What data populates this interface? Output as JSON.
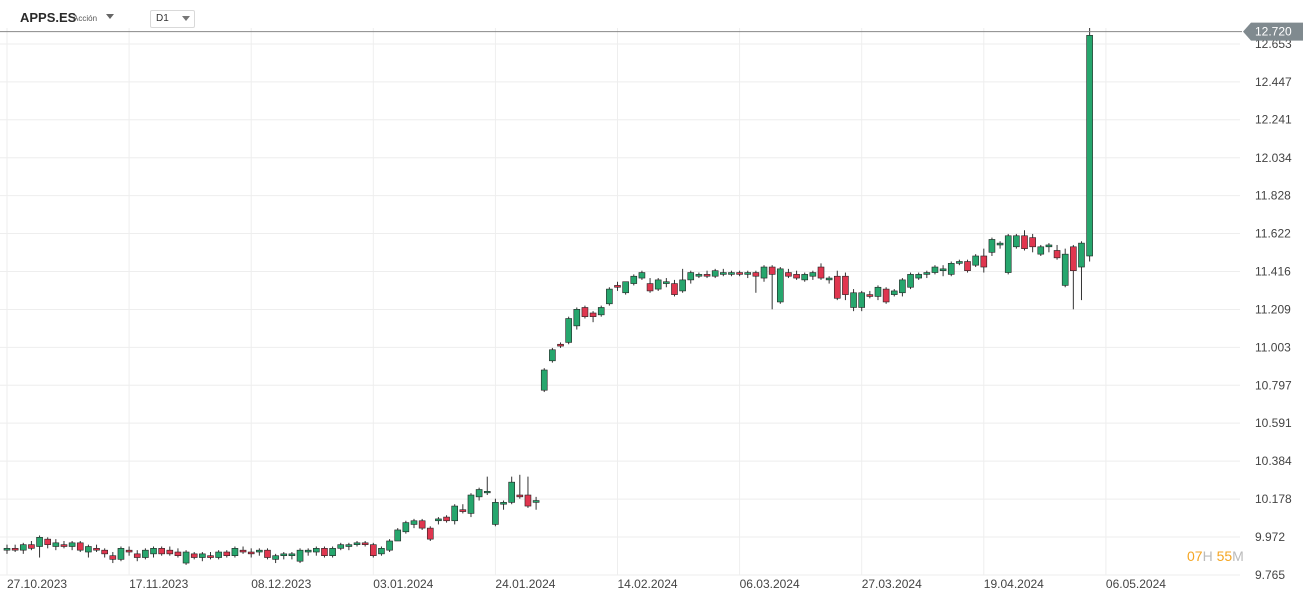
{
  "header": {
    "symbol": "APPS.ES",
    "type": "Acción",
    "timeframe": "D1"
  },
  "countdown": {
    "h": "07",
    "h_unit": "H",
    "m": "55",
    "m_unit": "M"
  },
  "colors": {
    "up": "#26a66d",
    "down": "#e0364f",
    "grid": "#eeeeee",
    "price_line": "#888888",
    "price_badge": "#808a8f"
  },
  "chart_data": {
    "type": "candlestick",
    "ylim": [
      9.765,
      12.74
    ],
    "y_ticks": [
      "12.653",
      "12.447",
      "12.241",
      "12.034",
      "11.828",
      "11.622",
      "11.416",
      "11.209",
      "11.003",
      "10.797",
      "10.591",
      "10.384",
      "10.178",
      "9.972",
      "9.765"
    ],
    "x_ticks": [
      "27.10.2023",
      "17.11.2023",
      "08.12.2023",
      "03.01.2024",
      "24.01.2024",
      "14.02.2024",
      "06.03.2024",
      "27.03.2024",
      "19.04.2024",
      "06.05.2024"
    ],
    "current_price": "12.720",
    "candles": [
      [
        9.9,
        9.93,
        9.88,
        9.91
      ],
      [
        9.91,
        9.93,
        9.89,
        9.9
      ],
      [
        9.9,
        9.94,
        9.88,
        9.93
      ],
      [
        9.93,
        9.95,
        9.9,
        9.91
      ],
      [
        9.92,
        9.98,
        9.86,
        9.97
      ],
      [
        9.96,
        9.97,
        9.91,
        9.93
      ],
      [
        9.92,
        9.96,
        9.9,
        9.94
      ],
      [
        9.93,
        9.95,
        9.91,
        9.92
      ],
      [
        9.92,
        9.95,
        9.9,
        9.94
      ],
      [
        9.94,
        9.95,
        9.89,
        9.9
      ],
      [
        9.89,
        9.93,
        9.86,
        9.92
      ],
      [
        9.91,
        9.93,
        9.89,
        9.9
      ],
      [
        9.9,
        9.91,
        9.86,
        9.88
      ],
      [
        9.87,
        9.89,
        9.83,
        9.85
      ],
      [
        9.85,
        9.92,
        9.84,
        9.91
      ],
      [
        9.9,
        9.92,
        9.87,
        9.89
      ],
      [
        9.88,
        9.9,
        9.84,
        9.86
      ],
      [
        9.86,
        9.91,
        9.85,
        9.9
      ],
      [
        9.88,
        9.92,
        9.86,
        9.91
      ],
      [
        9.91,
        9.92,
        9.87,
        9.88
      ],
      [
        9.9,
        9.92,
        9.87,
        9.88
      ],
      [
        9.89,
        9.91,
        9.86,
        9.87
      ],
      [
        9.83,
        9.9,
        9.82,
        9.89
      ],
      [
        9.88,
        9.89,
        9.85,
        9.86
      ],
      [
        9.86,
        9.89,
        9.84,
        9.88
      ],
      [
        9.87,
        9.89,
        9.85,
        9.86
      ],
      [
        9.86,
        9.9,
        9.85,
        9.89
      ],
      [
        9.89,
        9.9,
        9.86,
        9.87
      ],
      [
        9.87,
        9.92,
        9.86,
        9.91
      ],
      [
        9.9,
        9.92,
        9.88,
        9.89
      ],
      [
        9.89,
        9.91,
        9.86,
        9.88
      ],
      [
        9.89,
        9.91,
        9.87,
        9.9
      ],
      [
        9.9,
        9.91,
        9.85,
        9.86
      ],
      [
        9.85,
        9.88,
        9.83,
        9.87
      ],
      [
        9.87,
        9.89,
        9.85,
        9.88
      ],
      [
        9.87,
        9.89,
        9.85,
        9.88
      ],
      [
        9.84,
        9.91,
        9.83,
        9.9
      ],
      [
        9.89,
        9.91,
        9.87,
        9.9
      ],
      [
        9.89,
        9.92,
        9.87,
        9.91
      ],
      [
        9.91,
        9.92,
        9.86,
        9.87
      ],
      [
        9.87,
        9.92,
        9.86,
        9.91
      ],
      [
        9.91,
        9.94,
        9.9,
        9.93
      ],
      [
        9.92,
        9.94,
        9.9,
        9.93
      ],
      [
        9.93,
        9.95,
        9.92,
        9.94
      ],
      [
        9.94,
        9.95,
        9.92,
        9.93
      ],
      [
        9.93,
        9.94,
        9.86,
        9.87
      ],
      [
        9.88,
        9.92,
        9.87,
        9.91
      ],
      [
        9.9,
        9.96,
        9.89,
        9.95
      ],
      [
        9.95,
        10.02,
        9.95,
        10.01
      ],
      [
        10.0,
        10.06,
        9.99,
        10.05
      ],
      [
        10.04,
        10.07,
        10.02,
        10.06
      ],
      [
        10.06,
        10.07,
        10.01,
        10.02
      ],
      [
        10.02,
        10.03,
        9.95,
        9.96
      ],
      [
        10.06,
        10.08,
        10.04,
        10.07
      ],
      [
        10.08,
        10.09,
        10.05,
        10.06
      ],
      [
        10.06,
        10.15,
        10.04,
        10.14
      ],
      [
        10.12,
        10.15,
        10.1,
        10.11
      ],
      [
        10.1,
        10.21,
        10.08,
        10.2
      ],
      [
        10.19,
        10.24,
        10.17,
        10.23
      ],
      [
        10.22,
        10.3,
        10.2,
        10.22
      ],
      [
        10.04,
        10.18,
        10.03,
        10.16
      ],
      [
        10.15,
        10.17,
        10.12,
        10.16
      ],
      [
        10.16,
        10.3,
        10.15,
        10.27
      ],
      [
        10.2,
        10.31,
        10.18,
        10.19
      ],
      [
        10.2,
        10.3,
        10.13,
        10.14
      ],
      [
        10.16,
        10.19,
        10.12,
        10.17
      ],
      [
        10.77,
        10.89,
        10.76,
        10.88
      ],
      [
        10.93,
        11.0,
        10.92,
        10.99
      ],
      [
        11.02,
        11.03,
        11.0,
        11.01
      ],
      [
        11.03,
        11.17,
        11.02,
        11.16
      ],
      [
        11.12,
        11.22,
        11.1,
        11.21
      ],
      [
        11.22,
        11.23,
        11.16,
        11.17
      ],
      [
        11.19,
        11.2,
        11.14,
        11.17
      ],
      [
        11.18,
        11.23,
        11.17,
        11.22
      ],
      [
        11.24,
        11.33,
        11.23,
        11.32
      ],
      [
        11.34,
        11.36,
        11.31,
        11.33
      ],
      [
        11.3,
        11.36,
        11.29,
        11.36
      ],
      [
        11.35,
        11.4,
        11.34,
        11.39
      ],
      [
        11.38,
        11.42,
        11.37,
        11.41
      ],
      [
        11.35,
        11.38,
        11.3,
        11.31
      ],
      [
        11.32,
        11.38,
        11.31,
        11.37
      ],
      [
        11.35,
        11.38,
        11.33,
        11.36
      ],
      [
        11.35,
        11.37,
        11.28,
        11.29
      ],
      [
        11.31,
        11.43,
        11.3,
        11.37
      ],
      [
        11.37,
        11.42,
        11.35,
        11.41
      ],
      [
        11.39,
        11.41,
        11.38,
        11.4
      ],
      [
        11.4,
        11.42,
        11.38,
        11.39
      ],
      [
        11.39,
        11.43,
        11.38,
        11.42
      ],
      [
        11.4,
        11.43,
        11.39,
        11.41
      ],
      [
        11.4,
        11.42,
        11.39,
        11.41
      ],
      [
        11.41,
        11.42,
        11.39,
        11.4
      ],
      [
        11.4,
        11.42,
        11.38,
        11.41
      ],
      [
        11.41,
        11.42,
        11.3,
        11.39
      ],
      [
        11.38,
        11.45,
        11.36,
        11.44
      ],
      [
        11.44,
        11.45,
        11.21,
        11.4
      ],
      [
        11.25,
        11.44,
        11.24,
        11.43
      ],
      [
        11.41,
        11.43,
        11.38,
        11.39
      ],
      [
        11.4,
        11.42,
        11.37,
        11.38
      ],
      [
        11.37,
        11.41,
        11.36,
        11.4
      ],
      [
        11.39,
        11.42,
        11.37,
        11.41
      ],
      [
        11.44,
        11.46,
        11.37,
        11.38
      ],
      [
        11.37,
        11.39,
        11.35,
        11.38
      ],
      [
        11.39,
        11.42,
        11.26,
        11.27
      ],
      [
        11.39,
        11.41,
        11.26,
        11.29
      ],
      [
        11.22,
        11.32,
        11.2,
        11.3
      ],
      [
        11.22,
        11.31,
        11.2,
        11.3
      ],
      [
        11.29,
        11.31,
        11.27,
        11.28
      ],
      [
        11.28,
        11.34,
        11.26,
        11.33
      ],
      [
        11.32,
        11.33,
        11.24,
        11.25
      ],
      [
        11.29,
        11.32,
        11.28,
        11.31
      ],
      [
        11.3,
        11.38,
        11.28,
        11.37
      ],
      [
        11.33,
        11.41,
        11.32,
        11.4
      ],
      [
        11.38,
        11.41,
        11.37,
        11.4
      ],
      [
        11.4,
        11.42,
        11.38,
        11.41
      ],
      [
        11.41,
        11.45,
        11.4,
        11.44
      ],
      [
        11.42,
        11.45,
        11.39,
        11.43
      ],
      [
        11.4,
        11.47,
        11.39,
        11.46
      ],
      [
        11.46,
        11.48,
        11.45,
        11.47
      ],
      [
        11.47,
        11.48,
        11.41,
        11.42
      ],
      [
        11.45,
        11.51,
        11.44,
        11.5
      ],
      [
        11.5,
        11.54,
        11.41,
        11.44
      ],
      [
        11.52,
        11.6,
        11.5,
        11.59
      ],
      [
        11.56,
        11.58,
        11.54,
        11.57
      ],
      [
        11.41,
        11.62,
        11.4,
        11.61
      ],
      [
        11.55,
        11.62,
        11.54,
        11.61
      ],
      [
        11.61,
        11.64,
        11.53,
        11.54
      ],
      [
        11.6,
        11.62,
        11.52,
        11.55
      ],
      [
        11.51,
        11.56,
        11.5,
        11.55
      ],
      [
        11.55,
        11.57,
        11.52,
        11.56
      ],
      [
        11.53,
        11.56,
        11.48,
        11.49
      ],
      [
        11.34,
        11.54,
        11.33,
        11.51
      ],
      [
        11.55,
        11.56,
        11.21,
        11.42
      ],
      [
        11.44,
        11.58,
        11.26,
        11.57
      ],
      [
        11.5,
        12.74,
        11.47,
        12.7
      ]
    ]
  }
}
